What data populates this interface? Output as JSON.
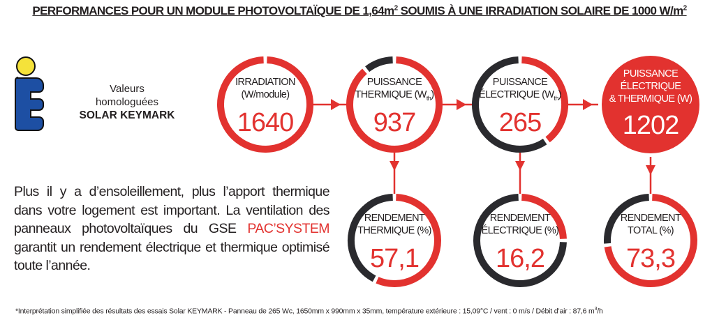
{
  "title": {
    "text": "PERFORMANCES POUR UN MODULE PHOTOVOLTAÏQUE DE 1,64m",
    "sup1": "2",
    "text2": " SOUMIS À UNE IRRADIATION SOLAIRE DE 1000 W/m",
    "sup2": "2"
  },
  "keymark": {
    "line1": "Valeurs",
    "line2": "homologuées",
    "line3": "SOLAR KEYMARK",
    "logo_colors": {
      "blue": "#1d4fa3",
      "yellow": "#f5e23a"
    }
  },
  "paragraph": {
    "before": "Plus il y a d’ensoleillement, plus l’apport thermique dans votre logement est important. La ventilation des panneaux photovoltaïques du GSE ",
    "highlight": "PAC’SYSTEM",
    "after": " garantit un rendement électrique et thermique optimisé toute l’année."
  },
  "colors": {
    "red": "#e2322f",
    "dark": "#2a2a2e",
    "text": "#231f20"
  },
  "circles": [
    {
      "id": "irradiation",
      "label1": "IRRADIATION",
      "label2": "(W/module)",
      "value": "1640",
      "ring_fraction": 1.0
    },
    {
      "id": "puissance-thermique",
      "label1": "PUISSANCE",
      "label2": "THERMIQUE (W",
      "sub": "th",
      "close": ")",
      "value": "937",
      "ring_fraction": 0.89
    },
    {
      "id": "puissance-electrique",
      "label1": "PUISSANCE",
      "label2": "ÉLECTRIQUE (W",
      "sub": "th",
      "close": ")",
      "value": "265",
      "ring_fraction": 0.4
    },
    {
      "id": "puissance-totale",
      "label1": "PUISSANCE",
      "label2": "ÉLECTRIQUE",
      "label3": "& THERMIQUE (W)",
      "value": "1202",
      "filled": true
    },
    {
      "id": "rendement-thermique",
      "label1": "RENDEMENT",
      "label2": "THERMIQUE (%)",
      "value": "57,1",
      "ring_fraction": 0.571
    },
    {
      "id": "rendement-electrique",
      "label1": "RENDEMENT",
      "label2": "ÉLECTRIQUE (%)",
      "value": "16,2",
      "ring_fraction": 0.25
    },
    {
      "id": "rendement-total",
      "label1": "RENDEMENT",
      "label2": "TOTAL (%)",
      "value": "73,3",
      "ring_fraction": 0.733
    }
  ],
  "footnote": {
    "text": "*Interprétation simplifiée des résultats des essais Solar KEYMARK - Panneau de 265 Wc, 1650mm x 990mm x 35mm, température extérieure : 15,09°C / vent : 0 m/s / Débit d’air : 87,6 m",
    "sup": "3",
    "end": "/h"
  }
}
